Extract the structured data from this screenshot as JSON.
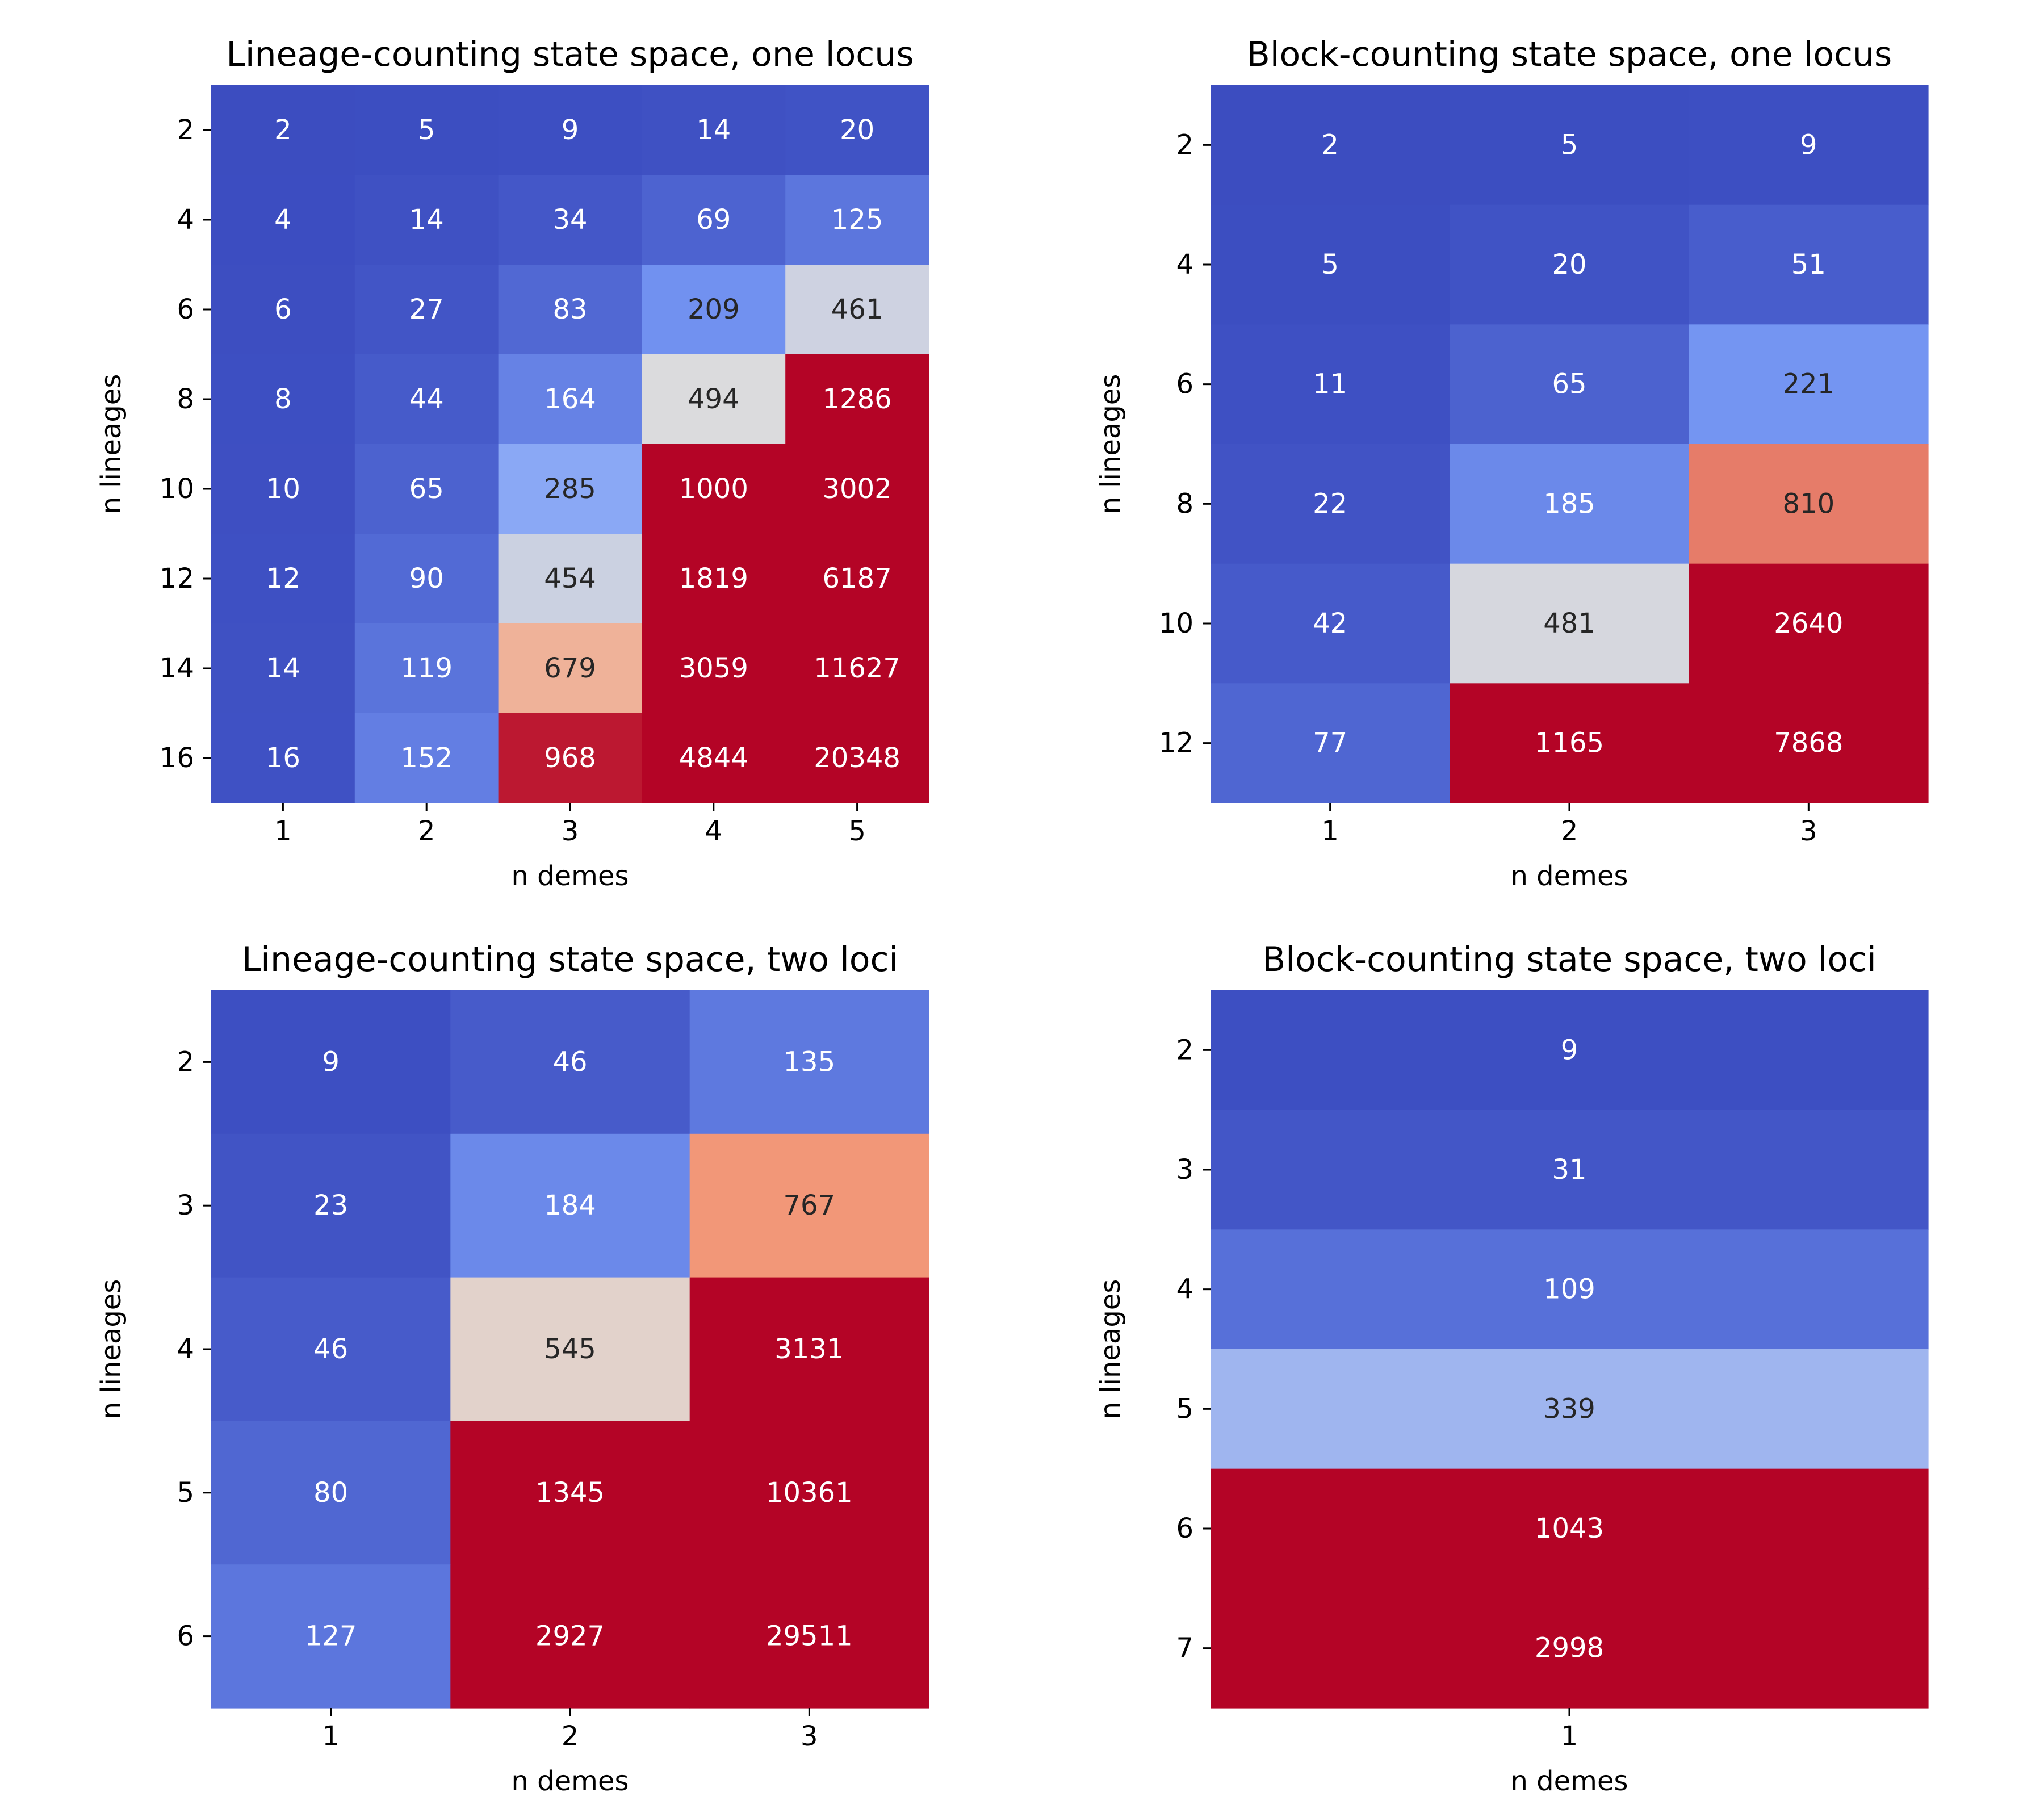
{
  "colors": {
    "cold": "#3b4cc0",
    "neutral": "#dddcdc",
    "hot": "#b40426",
    "dark_text": "#262626",
    "light_text": "#ffffff"
  },
  "chart_data": [
    {
      "type": "heatmap",
      "title": "Lineage-counting state space, one locus",
      "xlabel": "n demes",
      "ylabel": "n lineages",
      "x": [
        "1",
        "2",
        "3",
        "4",
        "5"
      ],
      "y": [
        "2",
        "4",
        "6",
        "8",
        "10",
        "12",
        "14",
        "16"
      ],
      "values": [
        [
          2,
          5,
          9,
          14,
          20
        ],
        [
          4,
          14,
          34,
          69,
          125
        ],
        [
          6,
          27,
          83,
          209,
          461
        ],
        [
          8,
          44,
          164,
          494,
          1286
        ],
        [
          10,
          65,
          285,
          1000,
          3002
        ],
        [
          12,
          90,
          454,
          1819,
          6187
        ],
        [
          14,
          119,
          679,
          3059,
          11627
        ],
        [
          16,
          152,
          968,
          4844,
          20348
        ]
      ],
      "colorbar": false,
      "color_range": [
        0,
        1000
      ]
    },
    {
      "type": "heatmap",
      "title": "Block-counting state space, one locus",
      "xlabel": "n demes",
      "ylabel": "n lineages",
      "x": [
        "1",
        "2",
        "3"
      ],
      "y": [
        "2",
        "4",
        "6",
        "8",
        "10",
        "12"
      ],
      "values": [
        [
          2,
          5,
          9
        ],
        [
          5,
          20,
          51
        ],
        [
          11,
          65,
          221
        ],
        [
          22,
          185,
          810
        ],
        [
          42,
          481,
          2640
        ],
        [
          77,
          1165,
          7868
        ]
      ],
      "colorbar": false,
      "color_range": [
        0,
        1000
      ]
    },
    {
      "type": "heatmap",
      "title": "Lineage-counting state space, two loci",
      "xlabel": "n demes",
      "ylabel": "n lineages",
      "x": [
        "1",
        "2",
        "3"
      ],
      "y": [
        "2",
        "3",
        "4",
        "5",
        "6"
      ],
      "values": [
        [
          9,
          46,
          135
        ],
        [
          23,
          184,
          767
        ],
        [
          46,
          545,
          3131
        ],
        [
          80,
          1345,
          10361
        ],
        [
          127,
          2927,
          29511
        ]
      ],
      "colorbar": false,
      "color_range": [
        0,
        1000
      ]
    },
    {
      "type": "heatmap",
      "title": "Block-counting state space, two loci",
      "xlabel": "n demes",
      "ylabel": "n lineages",
      "x": [
        "1"
      ],
      "y": [
        "2",
        "3",
        "4",
        "5",
        "6",
        "7"
      ],
      "values": [
        [
          9
        ],
        [
          31
        ],
        [
          109
        ],
        [
          339
        ],
        [
          1043
        ],
        [
          2998
        ]
      ],
      "colorbar": false,
      "color_range": [
        0,
        1000
      ]
    }
  ]
}
